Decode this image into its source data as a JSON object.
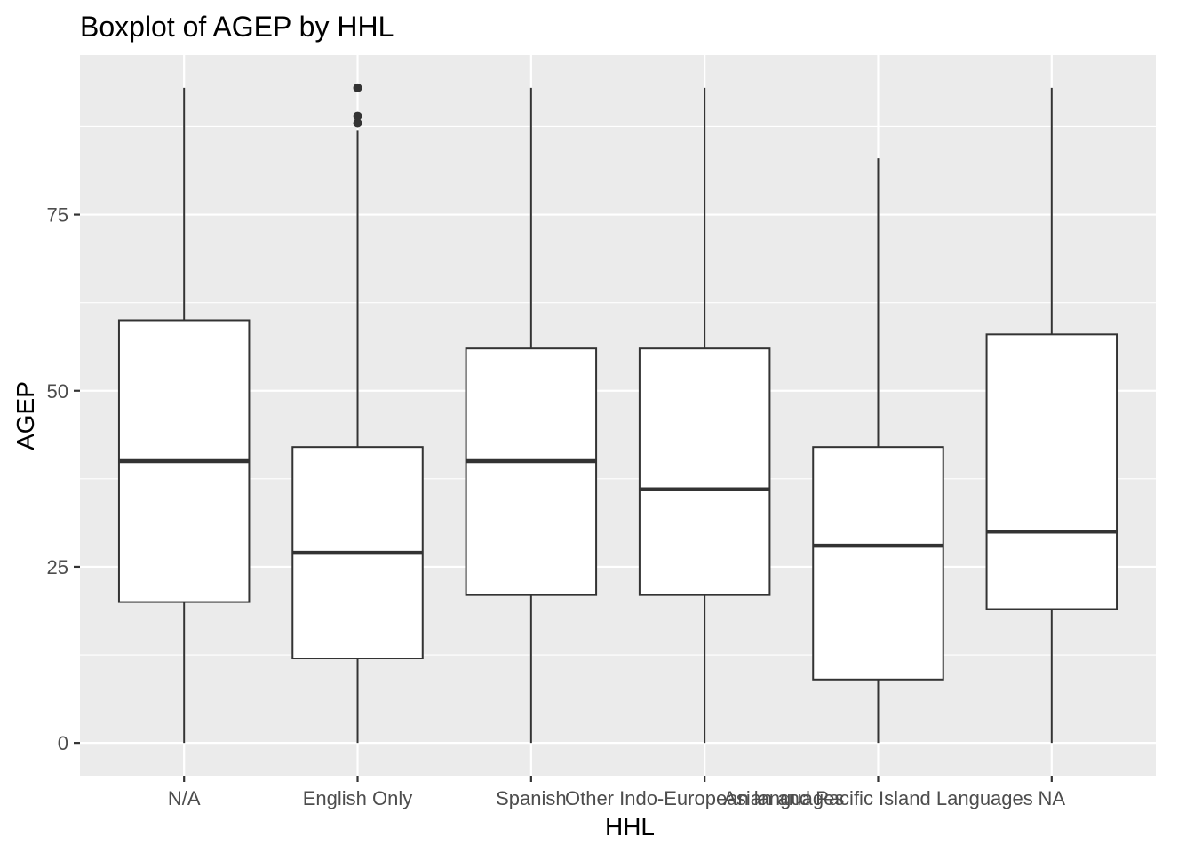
{
  "chart_data": {
    "type": "boxplot",
    "title": "Boxplot of AGEP by HHL",
    "xlabel": "HHL",
    "ylabel": "AGEP",
    "categories": [
      "N/A",
      "English Only",
      "Spanish",
      "Other Indo-European languages",
      "Asian and Pacific Island Languages",
      "NA"
    ],
    "boxes": [
      {
        "category": "N/A",
        "min": 0,
        "q1": 20,
        "median": 40,
        "q3": 60,
        "max": 93,
        "outliers": []
      },
      {
        "category": "English Only",
        "min": 0,
        "q1": 12,
        "median": 27,
        "q3": 42,
        "max": 87,
        "outliers": [
          88,
          89,
          93
        ]
      },
      {
        "category": "Spanish",
        "min": 0,
        "q1": 21,
        "median": 40,
        "q3": 56,
        "max": 93,
        "outliers": []
      },
      {
        "category": "Other Indo-European languages",
        "min": 0,
        "q1": 21,
        "median": 36,
        "q3": 56,
        "max": 93,
        "outliers": []
      },
      {
        "category": "Asian and Pacific Island Languages",
        "min": 0,
        "q1": 9,
        "median": 28,
        "q3": 42,
        "max": 83,
        "outliers": []
      },
      {
        "category": "NA",
        "min": 0,
        "q1": 19,
        "median": 30,
        "q3": 58,
        "max": 93,
        "outliers": []
      }
    ],
    "yticks": [
      0,
      25,
      50,
      75
    ],
    "ylim": [
      -4.65,
      97.65
    ],
    "grid": true,
    "theme": "ggplot2-gray"
  },
  "colors": {
    "panel_background": "#EBEBEB",
    "grid_line": "#FFFFFF",
    "box_fill": "#FFFFFF",
    "box_line": "#333333",
    "tick_text": "#4D4D4D",
    "title_text": "#000000"
  }
}
